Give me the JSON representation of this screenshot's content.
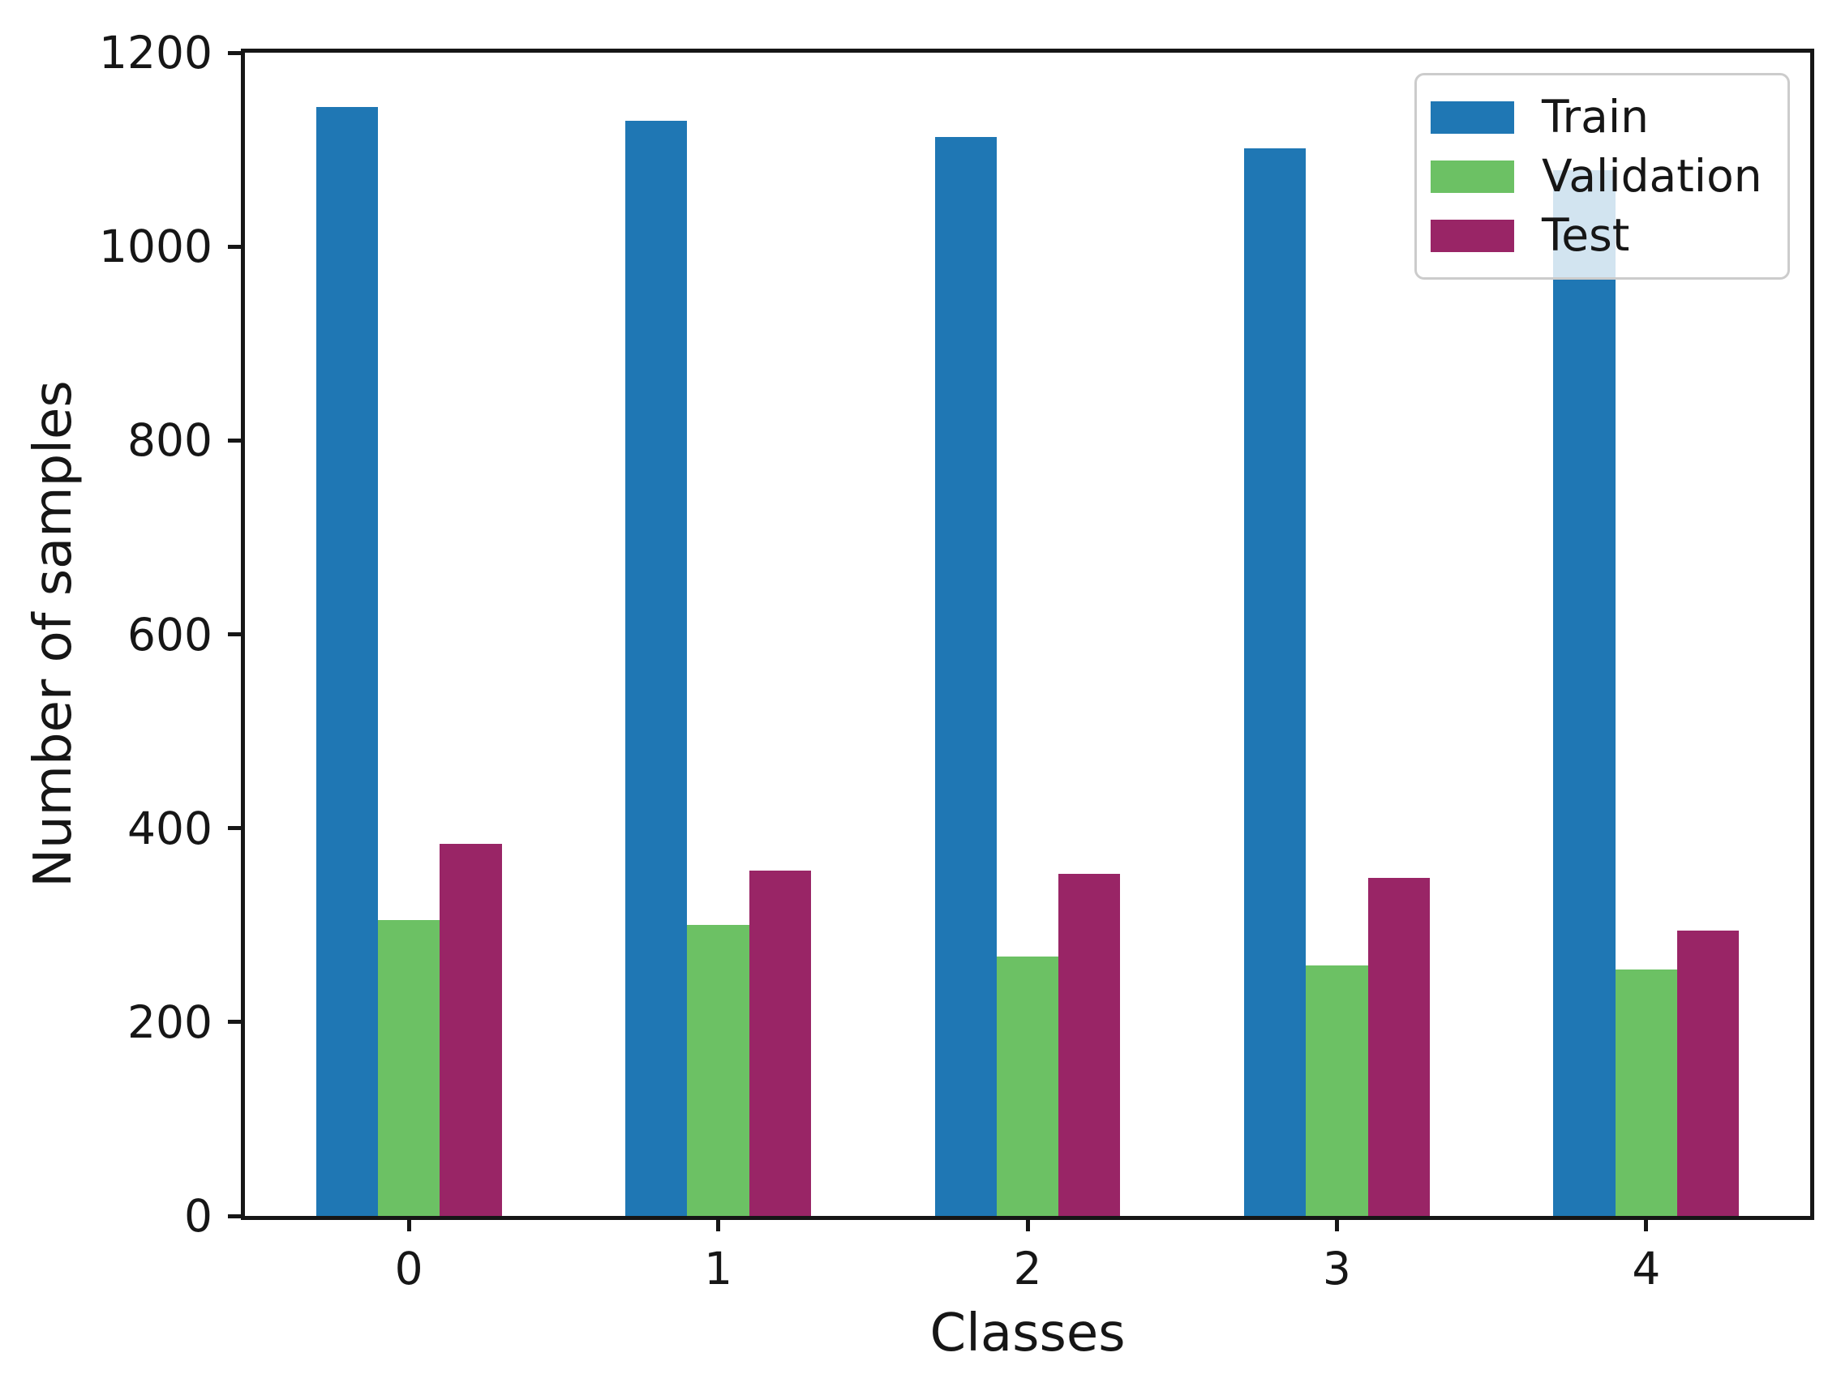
{
  "chart_data": {
    "type": "bar",
    "title": "",
    "xlabel": "Classes",
    "ylabel": "Number of samples",
    "categories": [
      "0",
      "1",
      "2",
      "3",
      "4"
    ],
    "series": [
      {
        "name": "Train",
        "color": "#1f77b4",
        "values": [
          1144,
          1130,
          1113,
          1101,
          1079
        ]
      },
      {
        "name": "Validation",
        "color": "#6cc164",
        "values": [
          305,
          300,
          268,
          258,
          254
        ]
      },
      {
        "name": "Test",
        "color": "#992566",
        "values": [
          384,
          356,
          353,
          349,
          294
        ]
      }
    ],
    "ylim": [
      0,
      1200
    ],
    "yticks": [
      0,
      200,
      400,
      600,
      800,
      1000,
      1200
    ],
    "xlim": [
      -0.53,
      4.53
    ],
    "bar_width": 0.2,
    "grid": false,
    "legend_position": "upper right",
    "style": {
      "text_color": "#161616",
      "spine_color": "#161616",
      "legend_border_color": "#cccccc",
      "legend_bg": "rgba(255,255,255,0.8)"
    }
  }
}
